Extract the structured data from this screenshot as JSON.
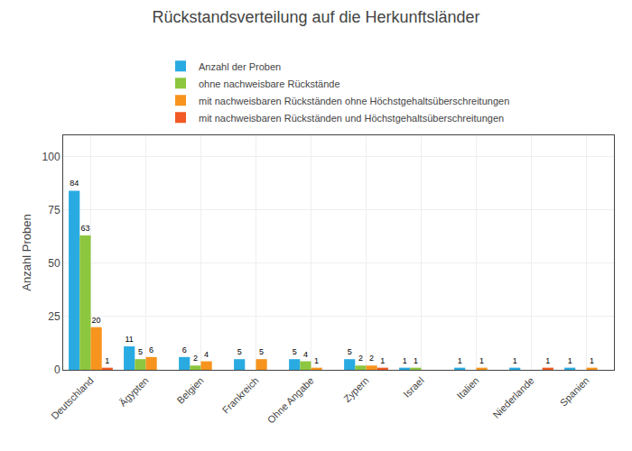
{
  "chart_data": {
    "type": "bar",
    "title": "Rückstandsverteilung auf die Herkunftsländer",
    "categories": [
      "Deutschland",
      "Ägypten",
      "Belgien",
      "Frankreich",
      "Ohne Angabe",
      "Zypern",
      "Israel",
      "Italien",
      "Niederlande",
      "Spanien"
    ],
    "series": [
      {
        "name": "Anzahl der Proben",
        "color": "#29ABE2",
        "values": [
          84,
          11,
          6,
          5,
          5,
          5,
          1,
          1,
          1,
          1
        ],
        "value_labels": [
          "84",
          "11",
          "6",
          "5",
          "5",
          "5",
          "1",
          "1",
          "1",
          "1"
        ]
      },
      {
        "name": "ohne nachweisbare Rückstände",
        "color": "#8DC63F",
        "values": [
          63,
          5,
          2,
          0,
          4,
          2,
          1,
          0,
          0,
          0
        ],
        "value_labels": [
          "63",
          "5",
          "2",
          null,
          "4",
          "2",
          "1",
          null,
          null,
          null
        ]
      },
      {
        "name": "mit nachweisbaren Rückständen ohne Höchstgehaltsüberschreitungen",
        "color": "#F7941D",
        "values": [
          20,
          6,
          4,
          5,
          1,
          2,
          0,
          1,
          0,
          1
        ],
        "value_labels": [
          "20",
          "6",
          "4",
          "5",
          "1",
          "2",
          null,
          "1",
          null,
          "1"
        ]
      },
      {
        "name": "mit nachweisbaren Rückständen und Höchstgehaltsüberschreitungen",
        "color": "#F15A24",
        "values": [
          1,
          0,
          0,
          0,
          0,
          1,
          0,
          0,
          1,
          0
        ],
        "value_labels": [
          "1",
          null,
          null,
          null,
          null,
          "1",
          null,
          null,
          "1",
          null
        ]
      }
    ],
    "ylabel": "Anzahl Proben",
    "ylim": [
      0,
      110
    ],
    "yticks": [
      0,
      25,
      50,
      75,
      100
    ],
    "grid": true,
    "legend": "top",
    "data_labels": true
  }
}
